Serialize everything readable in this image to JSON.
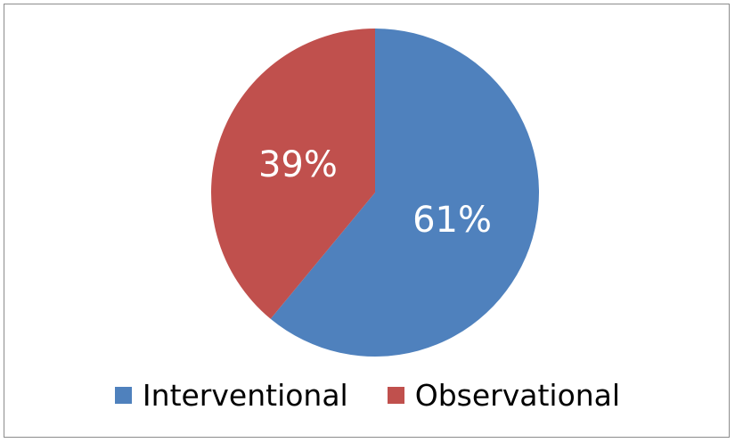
{
  "chart_data": {
    "type": "pie",
    "categories": [
      "Interventional",
      "Observational"
    ],
    "values": [
      61,
      39
    ],
    "value_labels": [
      "61%",
      "39%"
    ],
    "colors": [
      "#4F81BD",
      "#C0504D"
    ],
    "start": "12 o'clock, clockwise",
    "legend": "bottom"
  }
}
